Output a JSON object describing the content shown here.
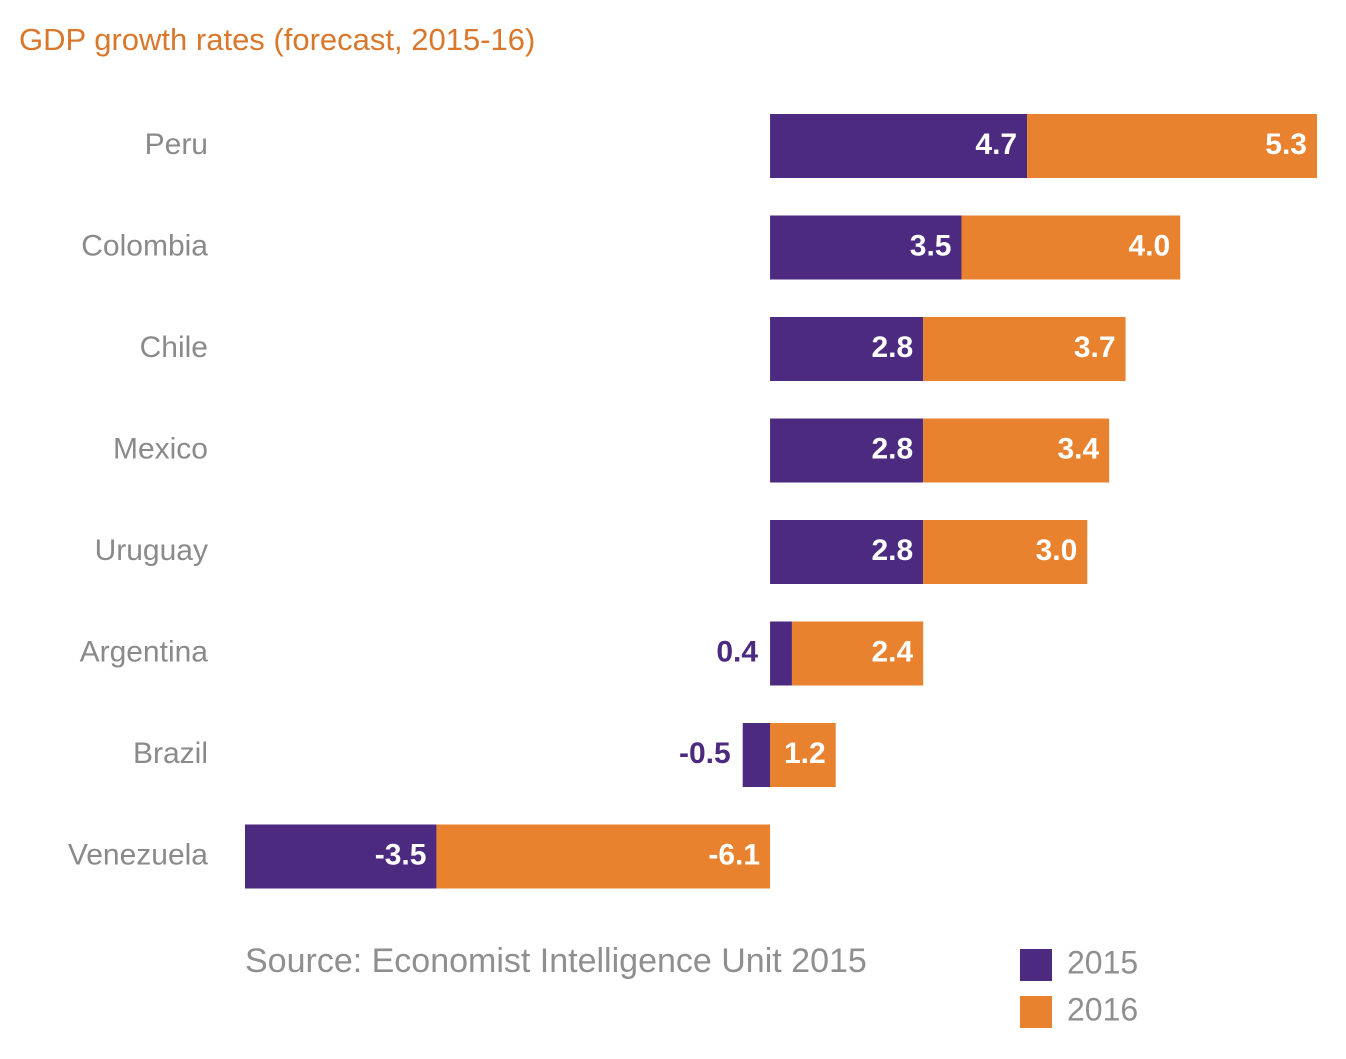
{
  "chart_data": {
    "type": "stacked-bar-horizontal",
    "title": "GDP growth rates (forecast, 2015-16)",
    "source": "Source: Economist Intelligence Unit 2015",
    "categories": [
      "Peru",
      "Colombia",
      "Chile",
      "Mexico",
      "Uruguay",
      "Argentina",
      "Brazil",
      "Venezuela"
    ],
    "series": [
      {
        "name": "2015",
        "color": "#4b2a7f",
        "values": [
          4.7,
          3.5,
          2.8,
          2.8,
          2.8,
          0.4,
          -0.5,
          -3.5
        ],
        "value_labels": [
          "4.7",
          "3.5",
          "2.8",
          "2.8",
          "2.8",
          "0.4",
          "-0.5",
          "-3.5"
        ]
      },
      {
        "name": "2016",
        "color": "#e8822e",
        "values": [
          5.3,
          4.0,
          3.7,
          3.4,
          3.0,
          2.4,
          1.2,
          -6.1
        ],
        "value_labels": [
          "5.3",
          "4.0",
          "3.7",
          "3.4",
          "3.0",
          "2.4",
          "1.2",
          "-6.1"
        ]
      }
    ],
    "legend": "bottom-right"
  }
}
